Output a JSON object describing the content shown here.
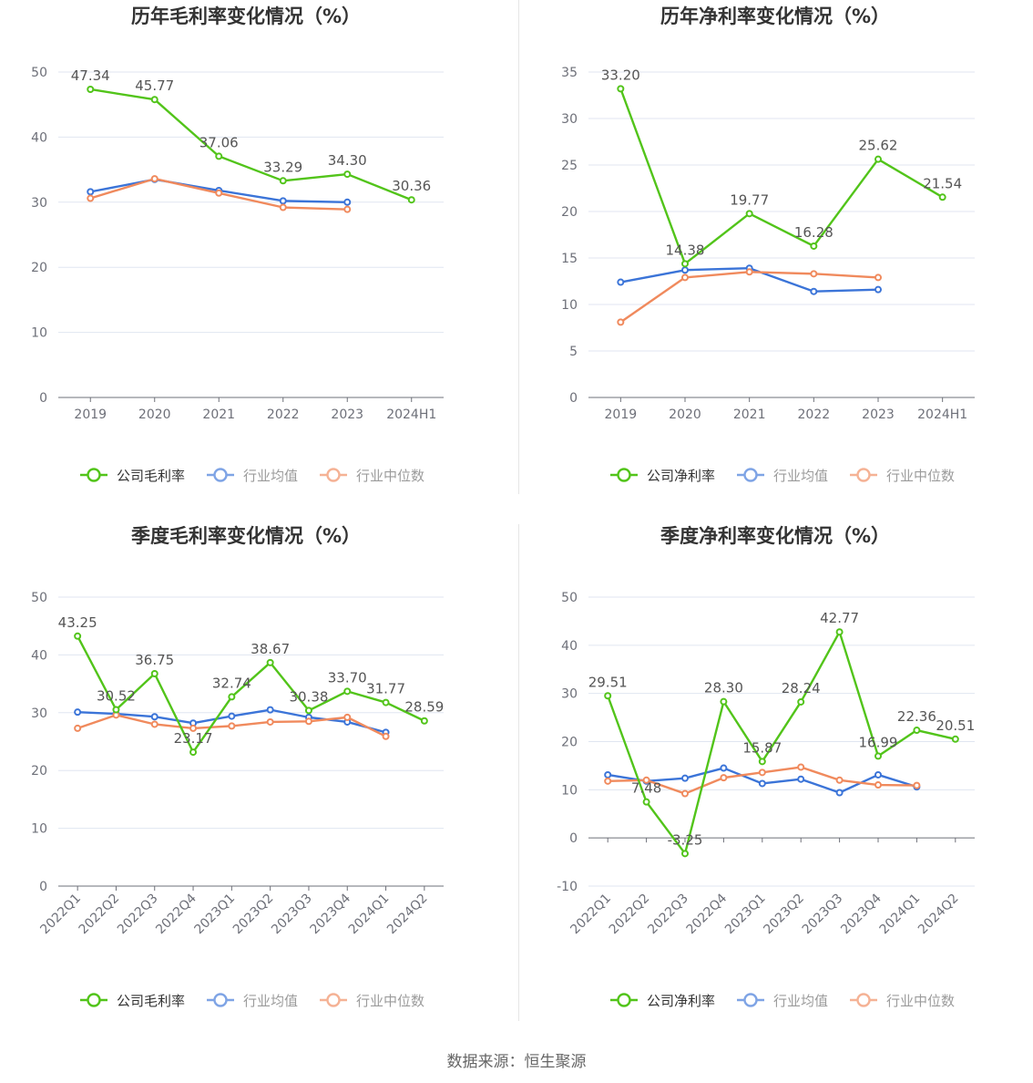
{
  "source": "数据来源：恒生聚源",
  "colors": {
    "company": "#52c41a",
    "avg": "#3b74d8",
    "median": "#f08a5d",
    "grid": "#e0e6f1",
    "axis": "#6e7079",
    "text": "#333333",
    "label": "#555555"
  },
  "chart_data": [
    {
      "type": "line",
      "title": "历年毛利率变化情况（%）",
      "categories": [
        "2019",
        "2020",
        "2021",
        "2022",
        "2023",
        "2024H1"
      ],
      "ylim": [
        0,
        50
      ],
      "yticks": [
        0,
        10,
        20,
        30,
        40,
        50
      ],
      "x_label_rotate": false,
      "grid": true,
      "legend_position": "bottom",
      "series": [
        {
          "name": "公司毛利率",
          "key": "company",
          "values": [
            47.34,
            45.77,
            37.06,
            33.29,
            34.3,
            30.36
          ],
          "labels": [
            "47.34",
            "45.77",
            "37.06",
            "33.29",
            "34.30",
            "30.36"
          ]
        },
        {
          "name": "行业均值",
          "key": "avg",
          "values": [
            31.6,
            33.5,
            31.8,
            30.2,
            30.0,
            null
          ]
        },
        {
          "name": "行业中位数",
          "key": "median",
          "values": [
            30.6,
            33.6,
            31.4,
            29.2,
            28.9,
            null
          ]
        }
      ]
    },
    {
      "type": "line",
      "title": "历年净利率变化情况（%）",
      "categories": [
        "2019",
        "2020",
        "2021",
        "2022",
        "2023",
        "2024H1"
      ],
      "ylim": [
        0,
        35
      ],
      "yticks": [
        0,
        5,
        10,
        15,
        20,
        25,
        30,
        35
      ],
      "x_label_rotate": false,
      "grid": true,
      "legend_position": "bottom",
      "series": [
        {
          "name": "公司净利率",
          "key": "company",
          "values": [
            33.2,
            14.38,
            19.77,
            16.28,
            25.62,
            21.54
          ],
          "labels": [
            "33.20",
            "14.38",
            "19.77",
            "16.28",
            "25.62",
            "21.54"
          ]
        },
        {
          "name": "行业均值",
          "key": "avg",
          "values": [
            12.4,
            13.7,
            13.9,
            11.4,
            11.6,
            null
          ]
        },
        {
          "name": "行业中位数",
          "key": "median",
          "values": [
            8.1,
            12.9,
            13.5,
            13.3,
            12.9,
            null
          ]
        }
      ]
    },
    {
      "type": "line",
      "title": "季度毛利率变化情况（%）",
      "categories": [
        "2022Q1",
        "2022Q2",
        "2022Q3",
        "2022Q4",
        "2023Q1",
        "2023Q2",
        "2023Q3",
        "2023Q4",
        "2024Q1",
        "2024Q2"
      ],
      "ylim": [
        0,
        50
      ],
      "yticks": [
        0,
        10,
        20,
        30,
        40,
        50
      ],
      "x_label_rotate": true,
      "grid": true,
      "legend_position": "bottom",
      "series": [
        {
          "name": "公司毛利率",
          "key": "company",
          "values": [
            43.25,
            30.52,
            36.75,
            23.17,
            32.74,
            38.67,
            30.38,
            33.7,
            31.77,
            28.59
          ],
          "labels": [
            "43.25",
            "30.52",
            "36.75",
            "23.17",
            "32.74",
            "38.67",
            "30.38",
            "33.70",
            "31.77",
            "28.59"
          ]
        },
        {
          "name": "行业均值",
          "key": "avg",
          "values": [
            30.1,
            29.8,
            29.3,
            28.2,
            29.4,
            30.5,
            29.2,
            28.4,
            26.6,
            null
          ]
        },
        {
          "name": "行业中位数",
          "key": "median",
          "values": [
            27.3,
            29.6,
            28.0,
            27.3,
            27.7,
            28.4,
            28.5,
            29.2,
            25.9,
            null
          ]
        }
      ]
    },
    {
      "type": "line",
      "title": "季度净利率变化情况（%）",
      "categories": [
        "2022Q1",
        "2022Q2",
        "2022Q3",
        "2022Q4",
        "2023Q1",
        "2023Q2",
        "2023Q3",
        "2023Q4",
        "2024Q1",
        "2024Q2"
      ],
      "ylim": [
        -10,
        50
      ],
      "yticks": [
        -10,
        0,
        10,
        20,
        30,
        40,
        50
      ],
      "x_label_rotate": true,
      "grid": true,
      "legend_position": "bottom",
      "series": [
        {
          "name": "公司净利率",
          "key": "company",
          "values": [
            29.51,
            7.48,
            -3.25,
            28.3,
            15.87,
            28.24,
            42.77,
            16.99,
            22.36,
            20.51
          ],
          "labels": [
            "29.51",
            "7.48",
            "-3.25",
            "28.30",
            "15.87",
            "28.24",
            "42.77",
            "16.99",
            "22.36",
            "20.51"
          ]
        },
        {
          "name": "行业均值",
          "key": "avg",
          "values": [
            13.1,
            11.8,
            12.4,
            14.5,
            11.3,
            12.2,
            9.4,
            13.1,
            10.6,
            null
          ]
        },
        {
          "name": "行业中位数",
          "key": "median",
          "values": [
            11.8,
            12.0,
            9.2,
            12.5,
            13.6,
            14.7,
            12.0,
            11.0,
            10.9,
            null
          ]
        }
      ]
    }
  ]
}
